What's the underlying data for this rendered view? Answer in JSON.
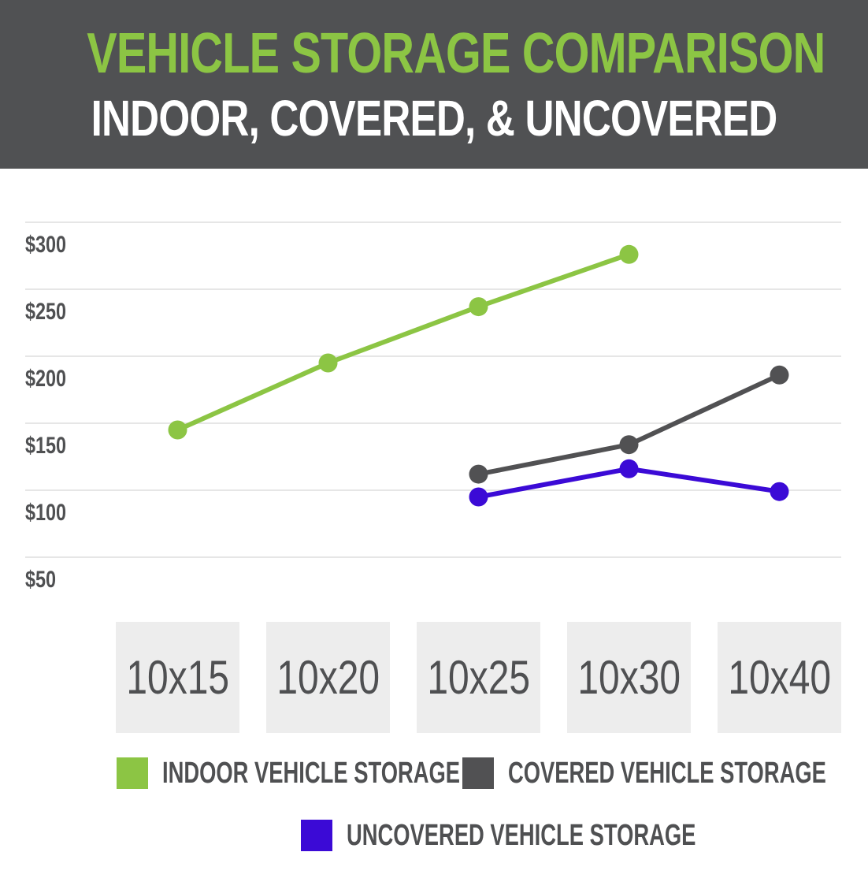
{
  "header": {
    "title": "VEHICLE STORAGE COMPARISON",
    "subtitle": "INDOOR, COVERED, & UNCOVERED"
  },
  "colors": {
    "header_bg": "#505153",
    "title": "#8cc544",
    "subtitle": "#ffffff",
    "grid": "#e6e6e6",
    "text": "#4f5052",
    "category_box": "#ededed"
  },
  "chart_data": {
    "type": "line",
    "title": "VEHICLE STORAGE COMPARISON",
    "subtitle": "INDOOR, COVERED, & UNCOVERED",
    "categories": [
      "10x15",
      "10x20",
      "10x25",
      "10x30",
      "10x40"
    ],
    "y_ticks": [
      "$300",
      "$250",
      "$200",
      "$150",
      "$100",
      "$50"
    ],
    "y_tick_values": [
      300,
      250,
      200,
      150,
      100,
      50
    ],
    "ylim": [
      50,
      300
    ],
    "grid": true,
    "legend_position": "bottom",
    "series": [
      {
        "name": "INDOOR VEHICLE STORAGE",
        "color": "#8cc544",
        "values": [
          145,
          195,
          237,
          276,
          null
        ]
      },
      {
        "name": "COVERED VEHICLE STORAGE",
        "color": "#515153",
        "values": [
          null,
          null,
          112,
          134,
          186
        ]
      },
      {
        "name": "UNCOVERED VEHICLE STORAGE",
        "color": "#3b0ad6",
        "values": [
          null,
          null,
          95,
          116,
          99
        ]
      }
    ]
  }
}
